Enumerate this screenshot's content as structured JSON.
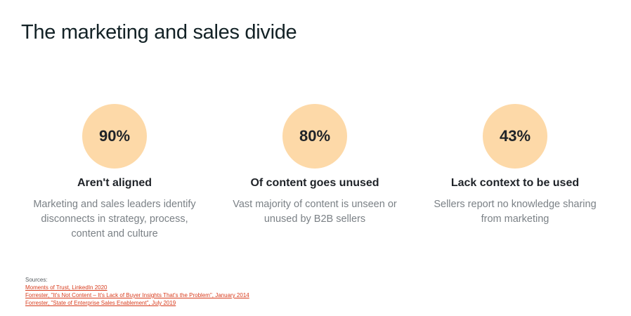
{
  "title": "The marketing and sales divide",
  "stats": [
    {
      "value": "90%",
      "heading": "Aren't aligned",
      "description": "Marketing and sales leaders identify disconnects in strategy, process, content and culture"
    },
    {
      "value": "80%",
      "heading": "Of content goes unused",
      "description": "Vast majority of content is unseen or unused by B2B sellers"
    },
    {
      "value": "43%",
      "heading": "Lack context to be used",
      "description": "Sellers report no knowledge sharing from marketing"
    }
  ],
  "sources": {
    "label": "Sources:",
    "links": [
      "Moments of Trust, LinkedIn 2020",
      "Forrester, \"It's Not Content – It's Lack of Buyer Insights That's the Problem\", January 2014",
      "Forrester, \"State of Enterprise Sales Enablement\", July 2019"
    ]
  },
  "colors": {
    "circle_fill": "#fdd9a8",
    "title_text": "#132226",
    "description_text": "#7b8186",
    "source_link": "#d83b1c"
  }
}
